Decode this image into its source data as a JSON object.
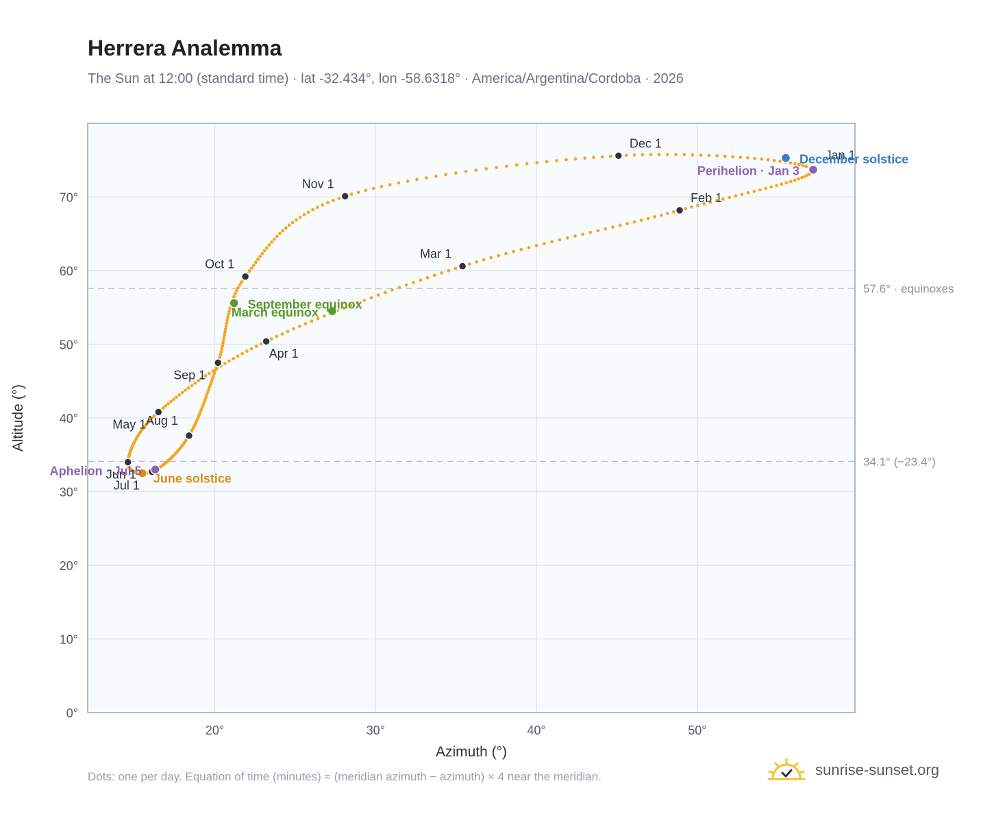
{
  "header": {
    "title": "Herrera Analemma",
    "subtitle": "The Sun at 12:00 (standard time) · lat -32.434°, lon -58.6318° · America/Argentina/Cordoba · 2026"
  },
  "footer": {
    "note": "Dots: one per day. Equation of time (minutes) ≈ (meridian azimuth − azimuth) × 4 near the meridian.",
    "brand": "sunrise-sunset.org"
  },
  "colors": {
    "curve": "#f5a623",
    "month_dot": "#2d3440",
    "equinox": "#5a9a2e",
    "june_solstice": "#d4901a",
    "december_solstice": "#3b7bbf",
    "aphelion_perihelion": "#8e63b3",
    "plot_bg": "#f8fbfd",
    "grid": "#e3e8ee"
  },
  "chart_data": {
    "type": "scatter",
    "xlabel": "Azimuth (°)",
    "ylabel": "Altitude (°)",
    "xlim": [
      12.1,
      59.8
    ],
    "ylim": [
      0,
      80
    ],
    "x_ticks": [
      {
        "value": 20,
        "label": "20°"
      },
      {
        "value": 30,
        "label": "30°"
      },
      {
        "value": 40,
        "label": "40°"
      },
      {
        "value": 50,
        "label": "50°"
      }
    ],
    "y_ticks": [
      {
        "value": 0,
        "label": "0°"
      },
      {
        "value": 10,
        "label": "10°"
      },
      {
        "value": 20,
        "label": "20°"
      },
      {
        "value": 30,
        "label": "30°"
      },
      {
        "value": 40,
        "label": "40°"
      },
      {
        "value": 50,
        "label": "50°"
      },
      {
        "value": 60,
        "label": "60°"
      },
      {
        "value": 70,
        "label": "70°"
      }
    ],
    "grid": true,
    "reference_lines": [
      {
        "y": 57.6,
        "label": "57.6° · equinoxes"
      },
      {
        "y": 34.1,
        "label": "34.1° (−23.4°)"
      }
    ],
    "month_points": [
      {
        "label": "Jan 1",
        "x": 57.1,
        "y": 73.8
      },
      {
        "label": "Feb 1",
        "x": 48.9,
        "y": 68.2
      },
      {
        "label": "Mar 1",
        "x": 35.4,
        "y": 60.6
      },
      {
        "label": "Apr 1",
        "x": 23.2,
        "y": 50.4
      },
      {
        "label": "May 1",
        "x": 16.5,
        "y": 40.8
      },
      {
        "label": "Jun 1",
        "x": 14.6,
        "y": 34.0
      },
      {
        "label": "Jul 1",
        "x": 16.1,
        "y": 32.7
      },
      {
        "label": "Aug 1",
        "x": 18.4,
        "y": 37.6
      },
      {
        "label": "Sep 1",
        "x": 20.2,
        "y": 47.5
      },
      {
        "label": "Oct 1",
        "x": 21.9,
        "y": 59.2
      },
      {
        "label": "Nov 1",
        "x": 28.1,
        "y": 70.1
      },
      {
        "label": "Dec 1",
        "x": 45.1,
        "y": 75.6
      }
    ],
    "events": [
      {
        "label": "March equinox",
        "x": 27.3,
        "y": 54.5,
        "color_key": "equinox"
      },
      {
        "label": "September equinox",
        "x": 21.2,
        "y": 55.6,
        "color_key": "equinox"
      },
      {
        "label": "June solstice",
        "x": 15.5,
        "y": 32.5,
        "color_key": "june_solstice"
      },
      {
        "label": "December solstice",
        "x": 55.5,
        "y": 75.3,
        "color_key": "december_solstice"
      },
      {
        "label": "Aphelion · Jul 5",
        "x": 16.3,
        "y": 33.0,
        "color_key": "aphelion_perihelion"
      },
      {
        "label": "Perihelion · Jan 3",
        "x": 57.2,
        "y": 73.7,
        "color_key": "aphelion_perihelion"
      }
    ]
  }
}
